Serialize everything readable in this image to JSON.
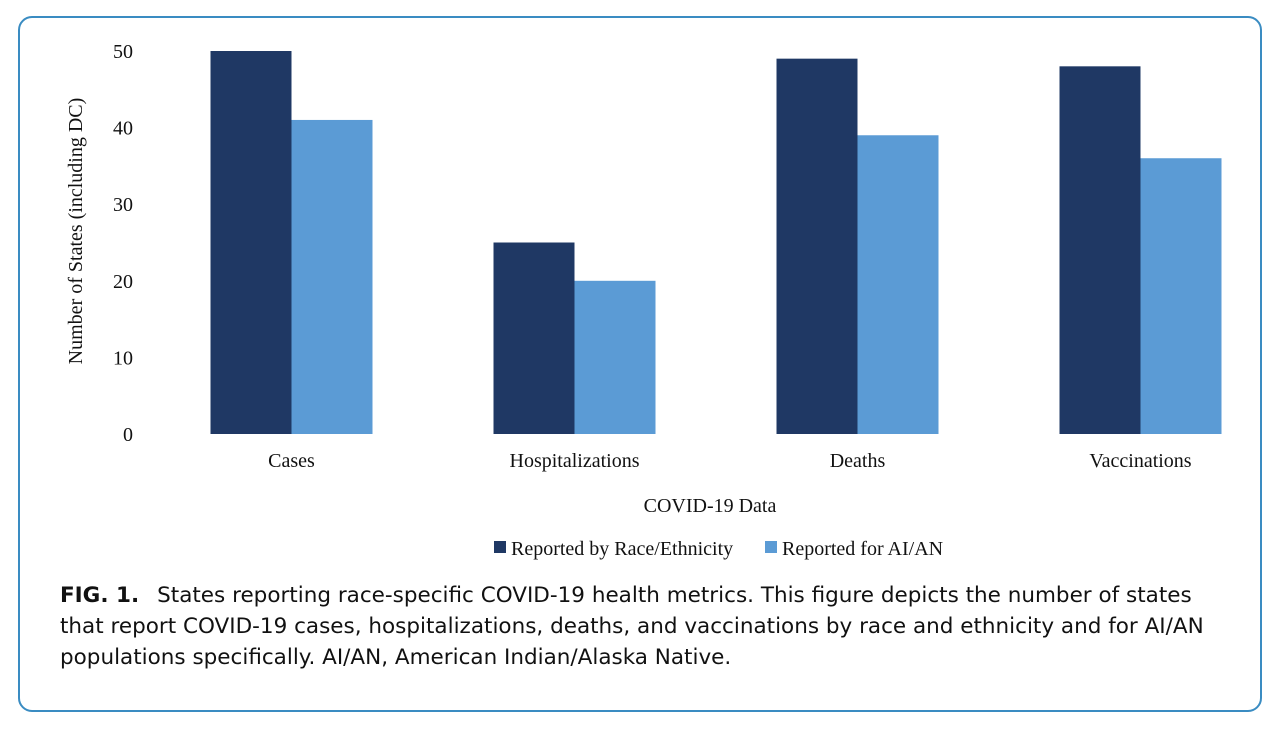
{
  "chart_data": {
    "type": "bar",
    "title": "",
    "xlabel": "COVID-19 Data",
    "ylabel": "Number of States (including DC)",
    "categories": [
      "Cases",
      "Hospitalizations",
      "Deaths",
      "Vaccinations"
    ],
    "series": [
      {
        "name": "Reported by Race/Ethnicity",
        "values": [
          50,
          25,
          49,
          48
        ],
        "color": "#1f3864"
      },
      {
        "name": "Reported for AI/AN",
        "values": [
          41,
          20,
          39,
          36
        ],
        "color": "#5b9bd5"
      }
    ],
    "ylim": [
      0,
      50
    ],
    "yticks": [
      0,
      10,
      20,
      30,
      40,
      50
    ],
    "grid": false,
    "legend_position": "bottom-center"
  },
  "caption": {
    "label": "FIG. 1.",
    "text": "States reporting race-specific COVID-19 health metrics. This figure depicts the number of states that report COVID-19 cases, hospitalizations, deaths, and vaccinations by race and ethnicity and for AI/AN populations specifically. AI/AN, American Indian/Alaska Native."
  },
  "colors": {
    "border": "#3a8cc2"
  }
}
